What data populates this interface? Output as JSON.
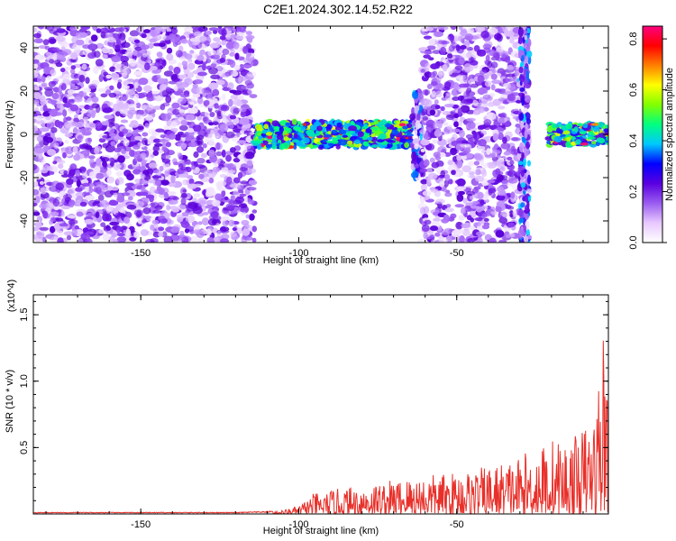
{
  "title": "C2E1.2024.302.14.52.R22",
  "chart_data": [
    {
      "type": "heatmap",
      "xlabel": "Height of straight line (km)",
      "ylabel": "Frequency (Hz)",
      "xlim": [
        -184,
        -2
      ],
      "ylim": [
        -50,
        50
      ],
      "xticks": [
        -150,
        -100,
        -50
      ],
      "yticks": [
        -40,
        -20,
        0,
        20,
        40
      ],
      "colorbar": {
        "label": "Normalized spectral amplitude",
        "range": [
          0.0,
          0.85
        ],
        "ticks": [
          0.0,
          0.2,
          0.4,
          0.6,
          0.8
        ],
        "colors": [
          "#ffffff",
          "#e8c8ff",
          "#9a5cf0",
          "#5a00e0",
          "#0000ff",
          "#00c8ff",
          "#00ff80",
          "#80ff00",
          "#ffff00",
          "#ff8000",
          "#ff0000",
          "#ff0080"
        ]
      },
      "regions": [
        {
          "x": [
            -184,
            -114
          ],
          "freq_center": 0,
          "freq_halfwidth": 50,
          "level": "noise"
        },
        {
          "x": [
            -114,
            -64
          ],
          "freq_center": 0,
          "freq_halfwidth": 6,
          "level": "signal",
          "peak_amplitude": 0.5
        },
        {
          "x": [
            -64,
            -61
          ],
          "freq_center": 0,
          "freq_halfwidth": 20,
          "level": "streak"
        },
        {
          "x": [
            -61,
            -30
          ],
          "freq_center": 0,
          "freq_halfwidth": 50,
          "level": "noise"
        },
        {
          "x": [
            -30,
            -27
          ],
          "freq_center": 0,
          "freq_halfwidth": 50,
          "level": "streak"
        },
        {
          "x": [
            -21,
            -2
          ],
          "freq_center": 0,
          "freq_halfwidth": 5,
          "level": "signal",
          "peak_amplitude": 0.85
        }
      ]
    },
    {
      "type": "line",
      "xlabel": "Height of straight line (km)",
      "ylabel": "SNR (10 * v/v)",
      "multiplier": "(x10^4)",
      "xlim": [
        -184,
        -2
      ],
      "ylim": [
        0,
        1.65
      ],
      "xticks": [
        -150,
        -100,
        -50
      ],
      "yticks": [
        0.5,
        1.0,
        1.5
      ],
      "series": [
        {
          "color": "#e8302a",
          "x": [
            -184,
            -160,
            -140,
            -120,
            -110,
            -105,
            -100,
            -98,
            -95,
            -92,
            -90,
            -85,
            -80,
            -75,
            -70,
            -65,
            -60,
            -55,
            -50,
            -45,
            -40,
            -35,
            -30,
            -25,
            -20,
            -15,
            -12,
            -10,
            -8,
            -6,
            -4,
            -3,
            -2
          ],
          "values": [
            0.01,
            0.01,
            0.01,
            0.01,
            0.015,
            0.03,
            0.06,
            0.1,
            0.16,
            0.15,
            0.18,
            0.2,
            0.22,
            0.24,
            0.26,
            0.28,
            0.3,
            0.3,
            0.32,
            0.34,
            0.36,
            0.4,
            0.44,
            0.5,
            0.58,
            0.55,
            0.6,
            0.66,
            0.72,
            0.8,
            1.4,
            1.6,
            1.3
          ]
        }
      ]
    }
  ]
}
